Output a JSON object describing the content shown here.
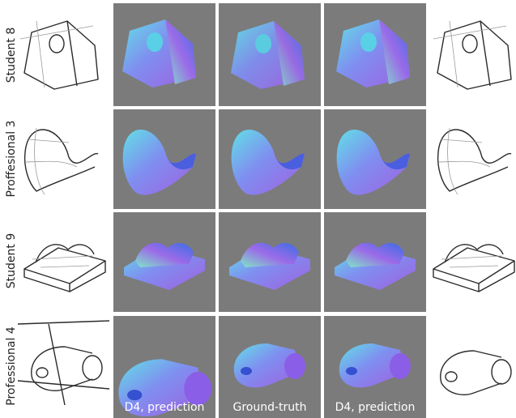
{
  "rows": [
    {
      "label": "Student 8"
    },
    {
      "label": "Proffesional 3"
    },
    {
      "label": "Student 9"
    },
    {
      "label": "Professional 4"
    }
  ],
  "captions": [
    "D4, prediction",
    "Ground-truth",
    "D4, prediction"
  ]
}
